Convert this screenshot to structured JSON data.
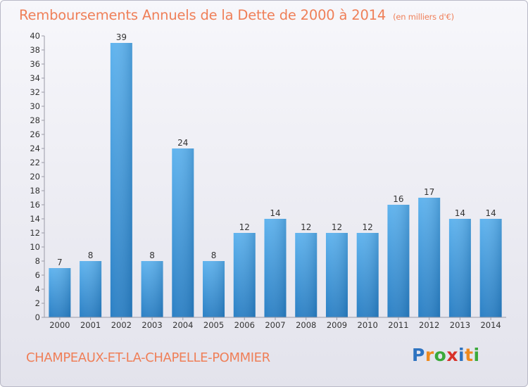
{
  "chart_data": {
    "type": "bar",
    "title": "Remboursements Annuels de la Dette de 2000 à 2014",
    "unit": "(en milliers d'€)",
    "categories": [
      "2000",
      "2001",
      "2002",
      "2003",
      "2004",
      "2005",
      "2006",
      "2007",
      "2008",
      "2009",
      "2010",
      "2011",
      "2012",
      "2013",
      "2014"
    ],
    "values": [
      7,
      8,
      39,
      8,
      24,
      8,
      12,
      14,
      12,
      12,
      12,
      16,
      17,
      14,
      14
    ],
    "ylim": [
      0,
      40
    ],
    "ytick_step": 2,
    "xlabel": "",
    "ylabel": "",
    "grid": false,
    "bar_color": "#3f94d9"
  },
  "footer": {
    "town": "CHAMPEAUX-ET-LA-CHAPELLE-POMMIER",
    "logo_letters": [
      "P",
      "r",
      "o",
      "x",
      "i",
      "t",
      "i"
    ],
    "logo_colors": [
      "#2e73c0",
      "#ef8a1e",
      "#3aa93a",
      "#d8322a",
      "#2e73c0",
      "#ef8a1e",
      "#3aa93a"
    ]
  }
}
